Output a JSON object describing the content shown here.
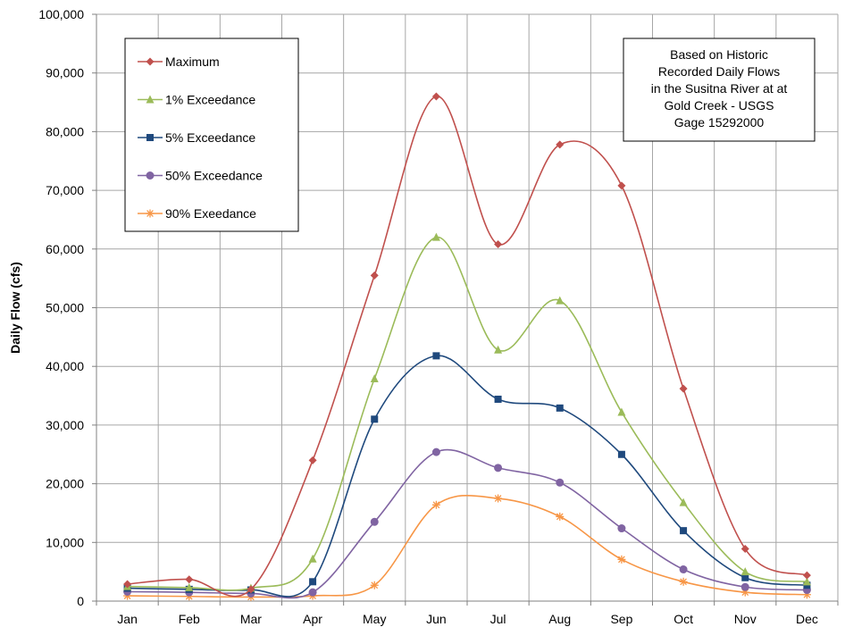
{
  "chart_data": {
    "type": "line",
    "title": "",
    "xlabel": "",
    "ylabel": "Daily Flow (cfs)",
    "categories": [
      "Jan",
      "Feb",
      "Mar",
      "Apr",
      "May",
      "Jun",
      "Jul",
      "Aug",
      "Sep",
      "Oct",
      "Nov",
      "Dec"
    ],
    "ylim": [
      0,
      100000
    ],
    "yticks": [
      0,
      10000,
      20000,
      30000,
      40000,
      50000,
      60000,
      70000,
      80000,
      90000,
      100000
    ],
    "ytick_labels": [
      "0",
      "10,000",
      "20,000",
      "30,000",
      "40,000",
      "50,000",
      "60,000",
      "70,000",
      "80,000",
      "90,000",
      "100,000"
    ],
    "grid": true,
    "legend_position": "top-left",
    "annotation": [
      "Based on Historic",
      "Recorded Daily Flows",
      "in the Susitna River at at",
      "Gold Creek - USGS",
      "Gage 15292000"
    ],
    "series": [
      {
        "name": "Maximum",
        "color": "#C0504D",
        "marker": "diamond",
        "values": [
          2900,
          3700,
          2000,
          24000,
          55500,
          86000,
          60800,
          77800,
          70800,
          36200,
          8900,
          4400
        ]
      },
      {
        "name": "1% Exceedance",
        "color": "#9BBB59",
        "marker": "triangle",
        "values": [
          2500,
          2300,
          2200,
          7200,
          37900,
          62000,
          42800,
          51200,
          32200,
          16800,
          5000,
          3300
        ]
      },
      {
        "name": "5% Exceedance",
        "color": "#1F497D",
        "marker": "square",
        "values": [
          2200,
          2000,
          1900,
          3300,
          31000,
          41800,
          34400,
          32900,
          25000,
          12000,
          4000,
          2700
        ]
      },
      {
        "name": "50% Exceedance",
        "color": "#8064A2",
        "marker": "circle",
        "values": [
          1600,
          1500,
          1300,
          1500,
          13500,
          25400,
          22700,
          20200,
          12400,
          5400,
          2400,
          1900
        ]
      },
      {
        "name": "90% Exeedance",
        "color": "#F79646",
        "marker": "asterisk",
        "values": [
          900,
          800,
          700,
          900,
          2700,
          16400,
          17500,
          14400,
          7100,
          3300,
          1500,
          1100
        ]
      }
    ]
  }
}
